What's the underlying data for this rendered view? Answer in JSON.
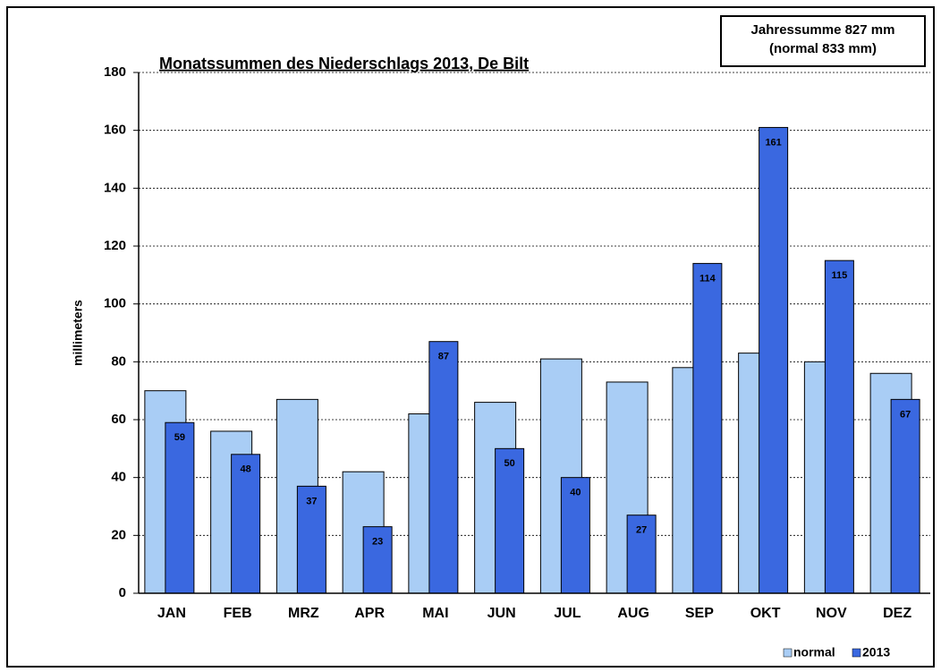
{
  "chart_data": {
    "type": "bar",
    "title": "Monatssummen des Niederschlags 2013, De Bilt",
    "annotations": [
      "Jahressumme 827 mm",
      "(normal  833 mm)"
    ],
    "y_label": "millimeters",
    "categories": [
      "JAN",
      "FEB",
      "MRZ",
      "APR",
      "MAI",
      "JUN",
      "JUL",
      "AUG",
      "SEP",
      "OKT",
      "NOV",
      "DEZ"
    ],
    "series": [
      {
        "name": "normal",
        "color": "#a9cdf5",
        "values": [
          70,
          56,
          67,
          42,
          62,
          66,
          81,
          73,
          78,
          83,
          80,
          76
        ]
      },
      {
        "name": "2013",
        "color": "#3a68e0",
        "values": [
          59,
          48,
          37,
          23,
          87,
          50,
          40,
          27,
          114,
          161,
          115,
          67
        ],
        "data_labels": true
      }
    ],
    "ylim": [
      0,
      180
    ],
    "yticks": [
      0,
      20,
      40,
      60,
      80,
      100,
      120,
      140,
      160,
      180
    ],
    "grid": true,
    "legend": "bottom-right"
  }
}
